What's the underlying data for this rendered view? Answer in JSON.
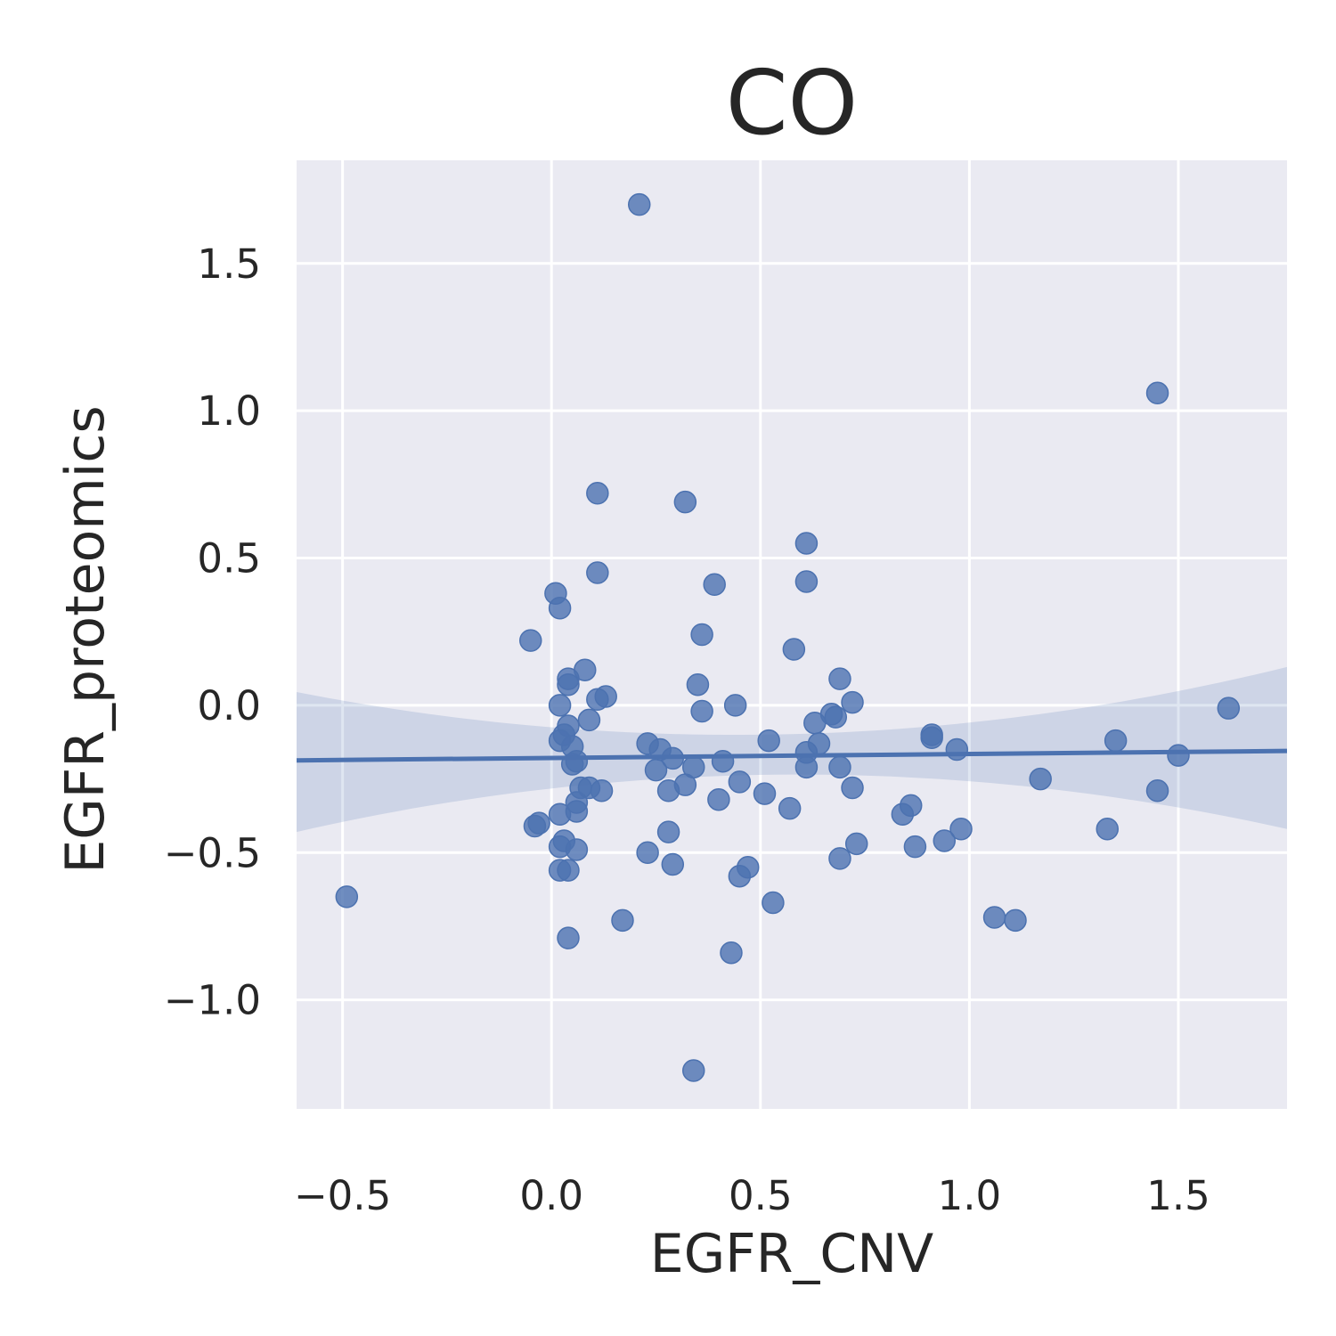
{
  "chart_data": {
    "type": "scatter",
    "title": "CO",
    "xlabel": "EGFR_CNV",
    "ylabel": "EGFR_proteomics",
    "xlim": [
      -0.61,
      1.76
    ],
    "ylim": [
      -1.37,
      1.85
    ],
    "x_ticks": [
      -0.5,
      0.0,
      0.5,
      1.0,
      1.5
    ],
    "x_tick_labels": [
      "−0.5",
      "0.0",
      "0.5",
      "1.0",
      "1.5"
    ],
    "y_ticks": [
      -1.0,
      -0.5,
      0.0,
      0.5,
      1.0,
      1.5
    ],
    "y_tick_labels": [
      "−1.0",
      "−0.5",
      "0.0",
      "0.5",
      "1.0",
      "1.5"
    ],
    "grid": true,
    "colors": {
      "background": "#eaeaf2",
      "points": "#4c72b0",
      "ci_band": "#4c72b0"
    },
    "points": [
      {
        "x": 0.21,
        "y": 1.7
      },
      {
        "x": 1.45,
        "y": 1.06
      },
      {
        "x": 0.11,
        "y": 0.72
      },
      {
        "x": 0.32,
        "y": 0.69
      },
      {
        "x": 0.61,
        "y": 0.55
      },
      {
        "x": 0.11,
        "y": 0.45
      },
      {
        "x": 0.61,
        "y": 0.42
      },
      {
        "x": 0.39,
        "y": 0.41
      },
      {
        "x": 0.01,
        "y": 0.38
      },
      {
        "x": 0.02,
        "y": 0.33
      },
      {
        "x": 0.36,
        "y": 0.24
      },
      {
        "x": -0.05,
        "y": 0.22
      },
      {
        "x": 0.58,
        "y": 0.19
      },
      {
        "x": 0.08,
        "y": 0.12
      },
      {
        "x": 0.04,
        "y": 0.09
      },
      {
        "x": 0.69,
        "y": 0.09
      },
      {
        "x": 0.04,
        "y": 0.07
      },
      {
        "x": 0.35,
        "y": 0.07
      },
      {
        "x": 0.13,
        "y": 0.03
      },
      {
        "x": 0.11,
        "y": 0.02
      },
      {
        "x": 0.72,
        "y": 0.01
      },
      {
        "x": 0.44,
        "y": 0.0
      },
      {
        "x": 0.02,
        "y": 0.0
      },
      {
        "x": 0.36,
        "y": -0.02
      },
      {
        "x": 1.62,
        "y": -0.01
      },
      {
        "x": 0.67,
        "y": -0.03
      },
      {
        "x": 0.68,
        "y": -0.04
      },
      {
        "x": 0.09,
        "y": -0.05
      },
      {
        "x": 0.63,
        "y": -0.06
      },
      {
        "x": 0.04,
        "y": -0.07
      },
      {
        "x": 0.91,
        "y": -0.1
      },
      {
        "x": 0.03,
        "y": -0.1
      },
      {
        "x": 0.91,
        "y": -0.11
      },
      {
        "x": 1.35,
        "y": -0.12
      },
      {
        "x": 0.52,
        "y": -0.12
      },
      {
        "x": 0.02,
        "y": -0.12
      },
      {
        "x": 0.23,
        "y": -0.13
      },
      {
        "x": 0.64,
        "y": -0.13
      },
      {
        "x": 0.05,
        "y": -0.14
      },
      {
        "x": 0.26,
        "y": -0.15
      },
      {
        "x": 0.97,
        "y": -0.15
      },
      {
        "x": 0.61,
        "y": -0.16
      },
      {
        "x": 1.5,
        "y": -0.17
      },
      {
        "x": 0.29,
        "y": -0.18
      },
      {
        "x": 0.06,
        "y": -0.19
      },
      {
        "x": 0.41,
        "y": -0.19
      },
      {
        "x": 0.05,
        "y": -0.2
      },
      {
        "x": 0.34,
        "y": -0.21
      },
      {
        "x": 0.61,
        "y": -0.21
      },
      {
        "x": 0.69,
        "y": -0.21
      },
      {
        "x": 0.25,
        "y": -0.22
      },
      {
        "x": 1.17,
        "y": -0.25
      },
      {
        "x": 0.45,
        "y": -0.26
      },
      {
        "x": 0.32,
        "y": -0.27
      },
      {
        "x": 0.07,
        "y": -0.28
      },
      {
        "x": 0.09,
        "y": -0.28
      },
      {
        "x": 0.72,
        "y": -0.28
      },
      {
        "x": 0.12,
        "y": -0.29
      },
      {
        "x": 0.28,
        "y": -0.29
      },
      {
        "x": 1.45,
        "y": -0.29
      },
      {
        "x": 0.51,
        "y": -0.3
      },
      {
        "x": 0.4,
        "y": -0.32
      },
      {
        "x": 0.06,
        "y": -0.33
      },
      {
        "x": 0.86,
        "y": -0.34
      },
      {
        "x": 0.57,
        "y": -0.35
      },
      {
        "x": 0.06,
        "y": -0.36
      },
      {
        "x": 0.02,
        "y": -0.37
      },
      {
        "x": 0.84,
        "y": -0.37
      },
      {
        "x": -0.03,
        "y": -0.4
      },
      {
        "x": -0.04,
        "y": -0.41
      },
      {
        "x": 1.33,
        "y": -0.42
      },
      {
        "x": 0.98,
        "y": -0.42
      },
      {
        "x": 0.28,
        "y": -0.43
      },
      {
        "x": 0.94,
        "y": -0.46
      },
      {
        "x": 0.03,
        "y": -0.46
      },
      {
        "x": 0.73,
        "y": -0.47
      },
      {
        "x": 0.02,
        "y": -0.48
      },
      {
        "x": 0.87,
        "y": -0.48
      },
      {
        "x": 0.06,
        "y": -0.49
      },
      {
        "x": 0.23,
        "y": -0.5
      },
      {
        "x": 0.69,
        "y": -0.52
      },
      {
        "x": 0.29,
        "y": -0.54
      },
      {
        "x": 0.47,
        "y": -0.55
      },
      {
        "x": 0.02,
        "y": -0.56
      },
      {
        "x": 0.04,
        "y": -0.56
      },
      {
        "x": 0.45,
        "y": -0.58
      },
      {
        "x": -0.49,
        "y": -0.65
      },
      {
        "x": 0.53,
        "y": -0.67
      },
      {
        "x": 1.06,
        "y": -0.72
      },
      {
        "x": 0.17,
        "y": -0.73
      },
      {
        "x": 1.11,
        "y": -0.73
      },
      {
        "x": 0.04,
        "y": -0.79
      },
      {
        "x": 0.43,
        "y": -0.84
      },
      {
        "x": 0.34,
        "y": -1.24
      }
    ],
    "regression": {
      "x_range": [
        -0.61,
        1.76
      ],
      "y_at_start": -0.187,
      "y_at_end": -0.155,
      "ci_start": [
        -0.43,
        0.045
      ],
      "ci_mid_x": 0.4,
      "ci_mid": [
        -0.24,
        -0.1
      ],
      "ci_end": [
        -0.42,
        0.13
      ]
    }
  }
}
